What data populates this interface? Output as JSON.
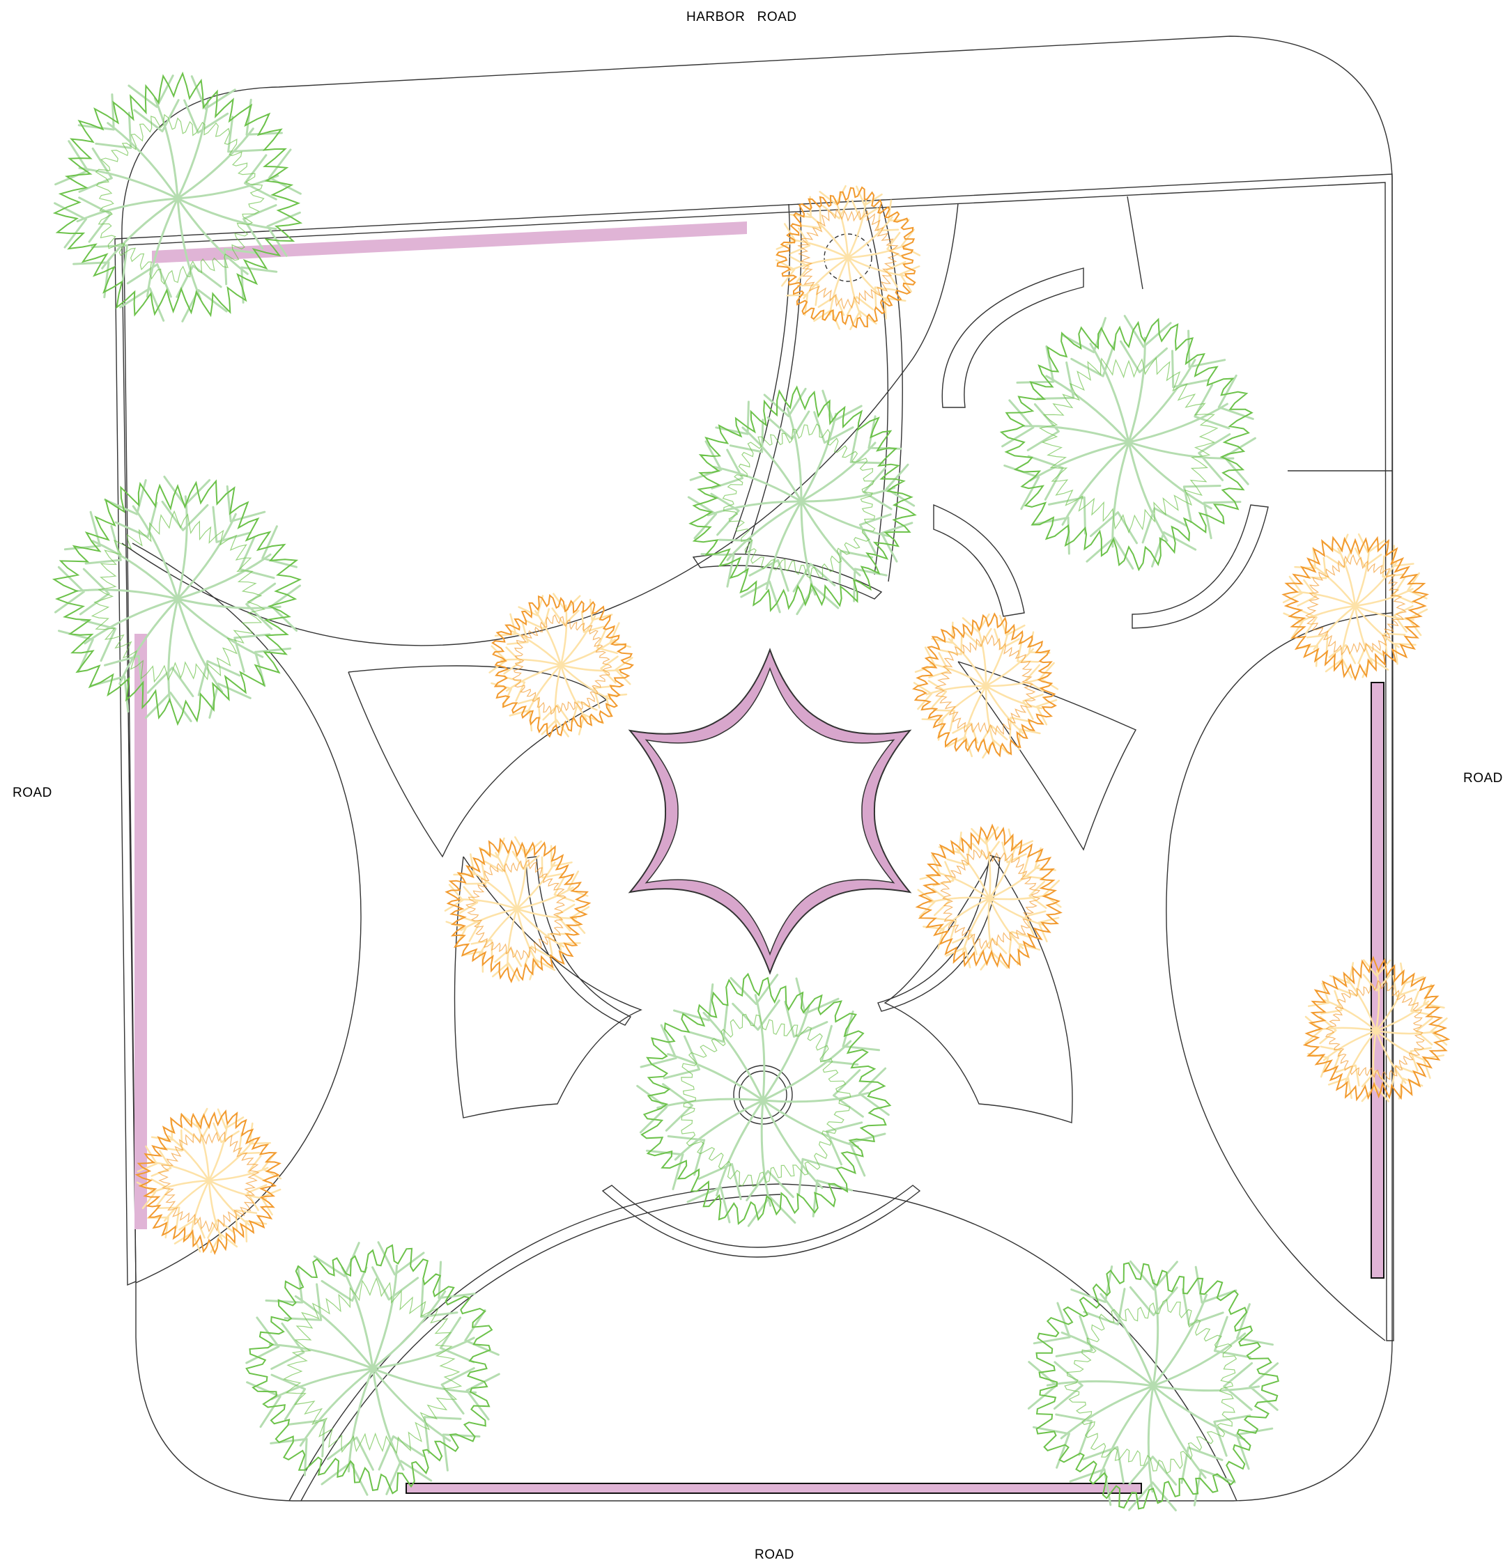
{
  "labels": {
    "top": "HARBOR   ROAD",
    "left": "ROAD",
    "right": "ROAD",
    "bottom": "ROAD"
  },
  "colors": {
    "linework": "#333333",
    "wall_fill": "#e0b4d6",
    "large_tree_outline": "#6cc24a",
    "large_tree_branches": "#b5ddb0",
    "small_tree_outline": "#f29a2e",
    "small_tree_branches": "#fde2a8",
    "background": "#ffffff"
  },
  "plant_symbols": [
    {
      "kind": "large-tree",
      "name": "large-tree-northwest"
    },
    {
      "kind": "large-tree",
      "name": "large-tree-west"
    },
    {
      "kind": "large-tree",
      "name": "large-tree-center-north"
    },
    {
      "kind": "large-tree",
      "name": "large-tree-northeast"
    },
    {
      "kind": "large-tree",
      "name": "large-tree-center-south"
    },
    {
      "kind": "large-tree",
      "name": "large-tree-southwest"
    },
    {
      "kind": "large-tree",
      "name": "large-tree-southeast"
    },
    {
      "kind": "small-tree",
      "name": "small-tree-north"
    },
    {
      "kind": "small-tree",
      "name": "small-tree-inner-northwest"
    },
    {
      "kind": "small-tree",
      "name": "small-tree-inner-northeast"
    },
    {
      "kind": "small-tree",
      "name": "small-tree-inner-southwest"
    },
    {
      "kind": "small-tree",
      "name": "small-tree-inner-southeast"
    },
    {
      "kind": "small-tree",
      "name": "small-tree-east-upper"
    },
    {
      "kind": "small-tree",
      "name": "small-tree-east-lower"
    },
    {
      "kind": "small-tree",
      "name": "small-tree-west-lower"
    }
  ]
}
